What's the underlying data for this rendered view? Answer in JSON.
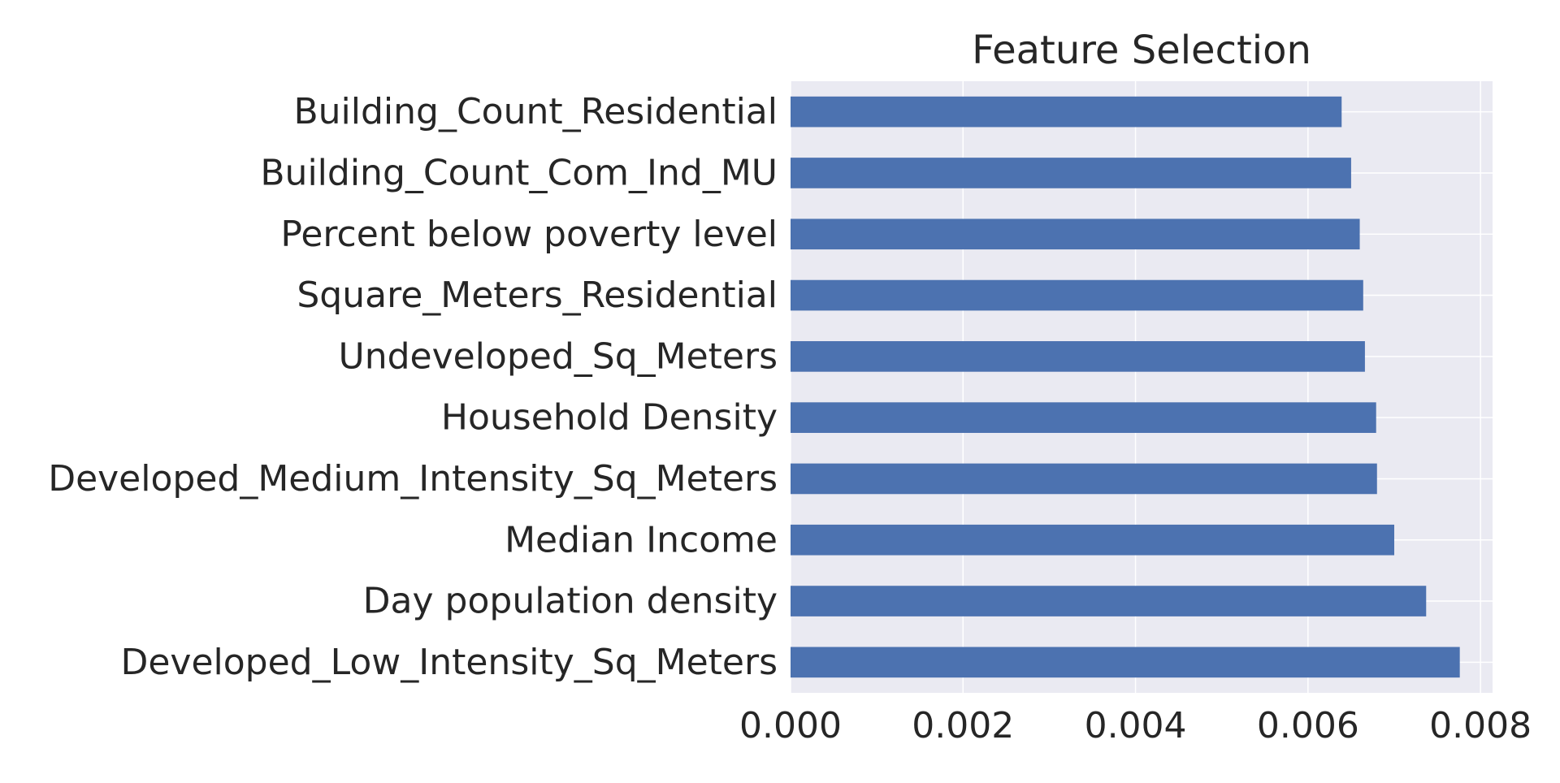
{
  "chart_data": {
    "type": "bar",
    "orientation": "horizontal",
    "title": "Feature Selection",
    "xlabel": "",
    "ylabel": "",
    "categories": [
      "Developed_Low_Intensity_Sq_Meters",
      "Day population density",
      "Median Income",
      "Developed_Medium_Intensity_Sq_Meters",
      "Household Density",
      "Undeveloped_Sq_Meters",
      "Square_Meters_Residential",
      "Percent below poverty level",
      "Building_Count_Com_Ind_MU",
      "Building_Count_Residential"
    ],
    "values": [
      0.00776,
      0.00737,
      0.007,
      0.0068,
      0.00679,
      0.00666,
      0.00664,
      0.0066,
      0.0065,
      0.00639
    ],
    "xlim": [
      0,
      0.00814
    ],
    "xticks": [
      0,
      0.002,
      0.004,
      0.006,
      0.008
    ],
    "xtick_labels": [
      "0.000",
      "0.002",
      "0.004",
      "0.006",
      "0.008"
    ],
    "grid": true,
    "legend": "none",
    "colors": {
      "bar": "#4c72b0",
      "plot_background": "#eaeaf2",
      "grid": "#ffffff",
      "text": "#262626"
    }
  }
}
